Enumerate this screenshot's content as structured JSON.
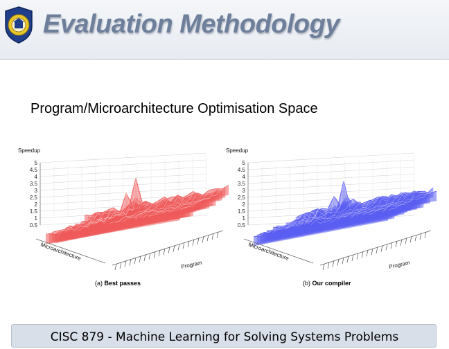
{
  "slide": {
    "title": "Evaluation Methodology",
    "subtitle": "Program/Microarchitecture Optimisation Space",
    "footer": "CISC 879 - Machine Learning for Solving Systems Problems"
  },
  "logo": {
    "icon": "university-crest-icon",
    "color": "#1f3f8a",
    "accent": "#e7c72a"
  },
  "chart_data": [
    {
      "type": "surface3d",
      "caption_label": "(a)",
      "caption": "Best passes",
      "zlabel": "Speedup",
      "xlabel": "Microarchitecture",
      "ylabel": "Program",
      "zticks": [
        "5",
        "4.5",
        "4",
        "3.5",
        "3",
        "2.5",
        "2",
        "1.5",
        "1",
        "0.5"
      ],
      "zlim": [
        0.5,
        5
      ],
      "color": "#ef5a5a",
      "baseline_speedup": 1.2,
      "peak_speedup": 4.6
    },
    {
      "type": "surface3d",
      "caption_label": "(b)",
      "caption": "Our compiler",
      "zlabel": "Speedup",
      "xlabel": "Microarchitecture",
      "ylabel": "Program",
      "zticks": [
        "5",
        "4.5",
        "4",
        "3.5",
        "3",
        "2.5",
        "2",
        "1.5",
        "1",
        "0.5"
      ],
      "zlim": [
        0.5,
        5
      ],
      "color": "#5a5cf0",
      "baseline_speedup": 1.2,
      "peak_speedup": 4.3
    }
  ]
}
